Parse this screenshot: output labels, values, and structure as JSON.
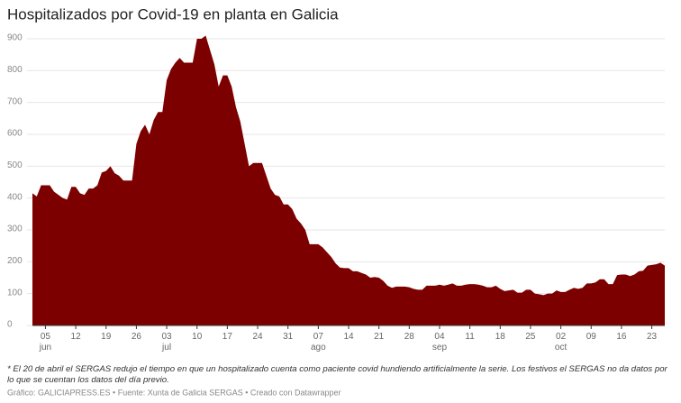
{
  "chart_data": {
    "type": "area",
    "title": "Hospitalizados por Covid-19 en planta en Galicia",
    "note": "* El 20 de abril el SERGAS redujo el tiempo en que un hospitalizado cuenta como paciente covid hundiendo artificialmente la serie. Los festivos el SERGAS no da datos por lo que se cuentan los datos del día previo.",
    "credit": "Gráfico: GALICIAPRESS.ES • Fuente: Xunta de Galicia SERGAS • Creado con Datawrapper",
    "color": "#7d0000",
    "grid": true,
    "ylim": [
      0,
      900
    ],
    "yticks": [
      0,
      100,
      200,
      300,
      400,
      500,
      600,
      700,
      800,
      900
    ],
    "categories": [
      null,
      null,
      null,
      "05\njun",
      null,
      null,
      null,
      null,
      null,
      null,
      "12",
      null,
      null,
      null,
      null,
      null,
      null,
      "19",
      null,
      null,
      null,
      null,
      null,
      null,
      "26",
      null,
      null,
      null,
      null,
      null,
      null,
      "03\njul",
      null,
      null,
      null,
      null,
      null,
      null,
      "10",
      null,
      null,
      null,
      null,
      null,
      null,
      "17",
      null,
      null,
      null,
      null,
      null,
      null,
      "24",
      null,
      null,
      null,
      null,
      null,
      null,
      "31",
      null,
      null,
      null,
      null,
      null,
      null,
      "07\nago",
      null,
      null,
      null,
      null,
      null,
      null,
      "14",
      null,
      null,
      null,
      null,
      null,
      null,
      "21",
      null,
      null,
      null,
      null,
      null,
      null,
      "28",
      null,
      null,
      null,
      null,
      null,
      null,
      "04\nsep",
      null,
      null,
      null,
      null,
      null,
      null,
      "11",
      null,
      null,
      null,
      null,
      null,
      null,
      "18",
      null,
      null,
      null,
      null,
      null,
      null,
      "25",
      null,
      null,
      null,
      null,
      null,
      null,
      "02\noct",
      null,
      null,
      null,
      null,
      null,
      null,
      "09",
      null,
      null,
      null,
      null,
      null,
      null,
      "16",
      null,
      null,
      null,
      null,
      null,
      null,
      "23",
      null,
      null,
      null
    ],
    "values": [
      415,
      405,
      440,
      440,
      440,
      420,
      410,
      400,
      395,
      435,
      435,
      415,
      410,
      430,
      430,
      440,
      480,
      485,
      500,
      478,
      470,
      455,
      455,
      455,
      570,
      610,
      630,
      600,
      645,
      670,
      670,
      770,
      805,
      825,
      840,
      825,
      825,
      825,
      900,
      900,
      910,
      865,
      820,
      750,
      785,
      785,
      750,
      685,
      640,
      570,
      500,
      510,
      510,
      510,
      470,
      430,
      410,
      405,
      380,
      380,
      365,
      335,
      320,
      300,
      255,
      255,
      255,
      245,
      230,
      215,
      195,
      182,
      180,
      180,
      170,
      170,
      165,
      160,
      150,
      152,
      150,
      140,
      125,
      118,
      122,
      122,
      122,
      120,
      115,
      112,
      112,
      125,
      125,
      125,
      128,
      125,
      128,
      132,
      125,
      125,
      128,
      130,
      130,
      128,
      125,
      120,
      120,
      125,
      115,
      108,
      110,
      112,
      103,
      103,
      112,
      112,
      100,
      98,
      95,
      100,
      100,
      110,
      105,
      105,
      112,
      118,
      115,
      118,
      132,
      132,
      135,
      145,
      145,
      130,
      130,
      158,
      160,
      160,
      155,
      160,
      170,
      172,
      188,
      190,
      192,
      197,
      188
    ]
  }
}
